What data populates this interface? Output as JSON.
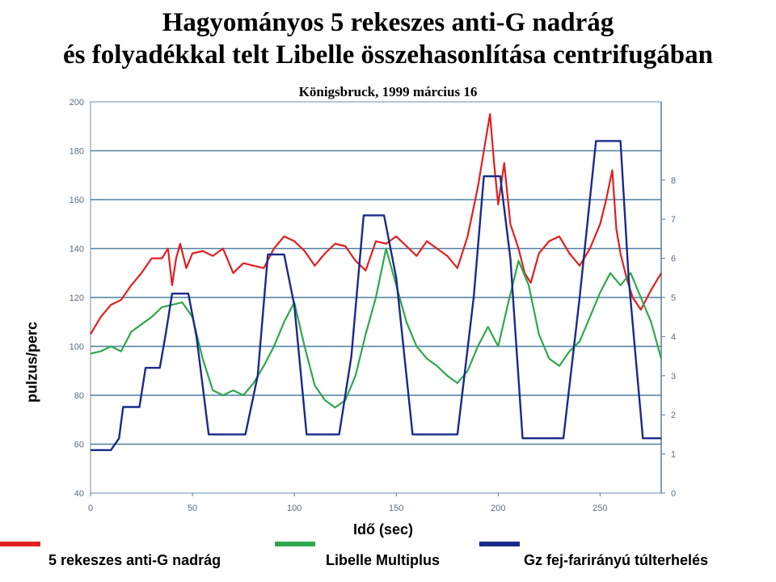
{
  "chart_data": {
    "type": "line",
    "title": "Hagyományos 5 rekeszes anti-G nadrág",
    "title_line2": "és folyadékkal telt Libelle összehasonlítása centrifugában",
    "subtitle": "Königsbruck, 1999 március 16",
    "xlabel": "Idő (sec)",
    "ylabel": "pulzus/perc",
    "xlim": [
      0,
      280
    ],
    "ylim": [
      40,
      200
    ],
    "y2lim": [
      0,
      10
    ],
    "x_ticks": [
      0,
      50,
      100,
      150,
      200,
      250
    ],
    "y_ticks": [
      40,
      60,
      80,
      100,
      120,
      140,
      160,
      180,
      200
    ],
    "y2_ticks": [
      0,
      1,
      2,
      3,
      4,
      5,
      6,
      7,
      8
    ],
    "grid": "horizontal",
    "legend_position": "bottom",
    "series": [
      {
        "name": "5 rekeszes anti-G nadrág",
        "axis": "left",
        "color": "#e02020",
        "x": [
          0,
          5,
          10,
          15,
          20,
          25,
          30,
          35,
          38,
          40,
          42,
          44,
          47,
          50,
          55,
          60,
          65,
          70,
          75,
          80,
          85,
          90,
          95,
          100,
          105,
          110,
          115,
          120,
          125,
          130,
          135,
          140,
          145,
          150,
          155,
          160,
          165,
          170,
          175,
          180,
          185,
          190,
          193,
          196,
          198,
          200,
          203,
          206,
          210,
          213,
          216,
          220,
          225,
          230,
          235,
          240,
          245,
          250,
          253,
          256,
          258,
          260,
          263,
          266,
          270,
          275,
          280
        ],
        "y": [
          105,
          112,
          117,
          119,
          125,
          130,
          136,
          136,
          140,
          125,
          136,
          142,
          132,
          138,
          139,
          137,
          140,
          130,
          134,
          133,
          132,
          140,
          145,
          143,
          139,
          133,
          138,
          142,
          141,
          135,
          131,
          143,
          142,
          145,
          141,
          137,
          143,
          140,
          137,
          132,
          145,
          165,
          180,
          195,
          175,
          158,
          175,
          150,
          140,
          130,
          126,
          138,
          143,
          145,
          138,
          133,
          140,
          150,
          160,
          172,
          148,
          138,
          128,
          120,
          115,
          123,
          130
        ]
      },
      {
        "name": "Libelle Multiplus",
        "axis": "left",
        "color": "#2ea84a",
        "x": [
          0,
          5,
          10,
          15,
          20,
          25,
          30,
          35,
          40,
          45,
          50,
          55,
          60,
          65,
          70,
          75,
          80,
          85,
          90,
          95,
          100,
          105,
          110,
          115,
          120,
          125,
          130,
          135,
          140,
          145,
          150,
          155,
          160,
          165,
          170,
          175,
          180,
          185,
          190,
          195,
          200,
          205,
          210,
          215,
          220,
          225,
          230,
          235,
          240,
          245,
          250,
          255,
          260,
          265,
          270,
          275,
          280
        ],
        "y": [
          97,
          98,
          100,
          98,
          106,
          109,
          112,
          116,
          117,
          118,
          112,
          95,
          82,
          80,
          82,
          80,
          85,
          92,
          100,
          110,
          118,
          100,
          84,
          78,
          75,
          78,
          88,
          105,
          120,
          140,
          125,
          110,
          100,
          95,
          92,
          88,
          85,
          90,
          100,
          108,
          100,
          118,
          135,
          125,
          105,
          95,
          92,
          98,
          102,
          112,
          122,
          130,
          125,
          130,
          120,
          110,
          95
        ]
      },
      {
        "name": "Gz fej-farirányú túlterhelés",
        "axis": "right",
        "color": "#1a2a8a",
        "x": [
          0,
          10,
          14,
          16,
          24,
          27,
          34,
          37,
          40,
          48,
          52,
          58,
          76,
          82,
          87,
          95,
          100,
          106,
          115,
          122,
          128,
          134,
          144,
          150,
          158,
          166,
          180,
          188,
          193,
          201,
          206,
          212,
          232,
          240,
          248,
          260,
          264,
          271,
          277,
          280
        ],
        "y": [
          1.1,
          1.1,
          1.4,
          2.2,
          2.2,
          3.2,
          3.2,
          4.1,
          5.1,
          5.1,
          4.0,
          1.5,
          1.5,
          3.0,
          6.1,
          6.1,
          4.8,
          1.5,
          1.5,
          1.5,
          3.5,
          7.1,
          7.1,
          5.5,
          1.5,
          1.5,
          1.5,
          5.0,
          8.1,
          8.1,
          6.0,
          1.4,
          1.4,
          5.0,
          9.0,
          9.0,
          5.5,
          1.4,
          1.4,
          1.4
        ]
      }
    ]
  }
}
